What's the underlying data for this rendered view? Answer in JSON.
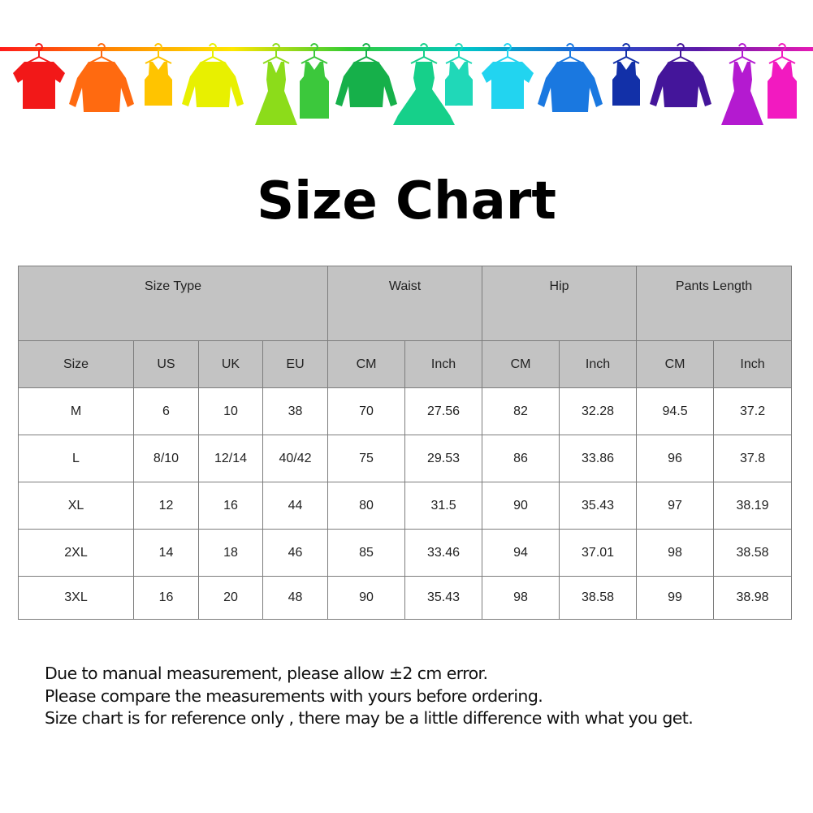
{
  "banner": {
    "line_colors": [
      "#ff1a1a",
      "#ff8a00",
      "#ffe600",
      "#33cc33",
      "#00c8c8",
      "#1a5fd6",
      "#5a1aa8",
      "#e61ab4"
    ],
    "garments": [
      {
        "icon": "tshirt-icon",
        "color": "#f21818"
      },
      {
        "icon": "shirt-icon",
        "color": "#ff6a10"
      },
      {
        "icon": "tank-top-icon",
        "color": "#ffc400"
      },
      {
        "icon": "sweater-icon",
        "color": "#e8f000"
      },
      {
        "icon": "dress-icon",
        "color": "#8cdc1a"
      },
      {
        "icon": "belted-dress-icon",
        "color": "#3cc83c"
      },
      {
        "icon": "sweater-icon",
        "color": "#16b04a"
      },
      {
        "icon": "full-dress-icon",
        "color": "#16d08a"
      },
      {
        "icon": "tank-top-icon",
        "color": "#20d8b8"
      },
      {
        "icon": "tshirt-icon",
        "color": "#22d4f0"
      },
      {
        "icon": "shirt-icon",
        "color": "#1a78e0"
      },
      {
        "icon": "tank-top-icon",
        "color": "#1230a8"
      },
      {
        "icon": "sweater-icon",
        "color": "#44159a"
      },
      {
        "icon": "dress-icon",
        "color": "#b41ad0"
      },
      {
        "icon": "belted-dress-icon",
        "color": "#f21ac0"
      }
    ]
  },
  "title": "Size Chart",
  "table": {
    "groups": [
      "Size Type",
      "Waist",
      "Hip",
      "Pants Length"
    ],
    "subheaders": [
      "Size",
      "US",
      "UK",
      "EU",
      "CM",
      "Inch",
      "CM",
      "Inch",
      "CM",
      "Inch"
    ],
    "rows": [
      [
        "M",
        "6",
        "10",
        "38",
        "70",
        "27.56",
        "82",
        "32.28",
        "94.5",
        "37.2"
      ],
      [
        "L",
        "8/10",
        "12/14",
        "40/42",
        "75",
        "29.53",
        "86",
        "33.86",
        "96",
        "37.8"
      ],
      [
        "XL",
        "12",
        "16",
        "44",
        "80",
        "31.5",
        "90",
        "35.43",
        "97",
        "38.19"
      ],
      [
        "2XL",
        "14",
        "18",
        "46",
        "85",
        "33.46",
        "94",
        "37.01",
        "98",
        "38.58"
      ],
      [
        "3XL",
        "16",
        "20",
        "48",
        "90",
        "35.43",
        "98",
        "38.58",
        "99",
        "38.98"
      ]
    ]
  },
  "notes": [
    "Due to manual measurement, please allow ±2 cm error.",
    "Please compare the measurements with yours before ordering.",
    "Size chart is for reference only , there may be a little difference with what you get."
  ]
}
